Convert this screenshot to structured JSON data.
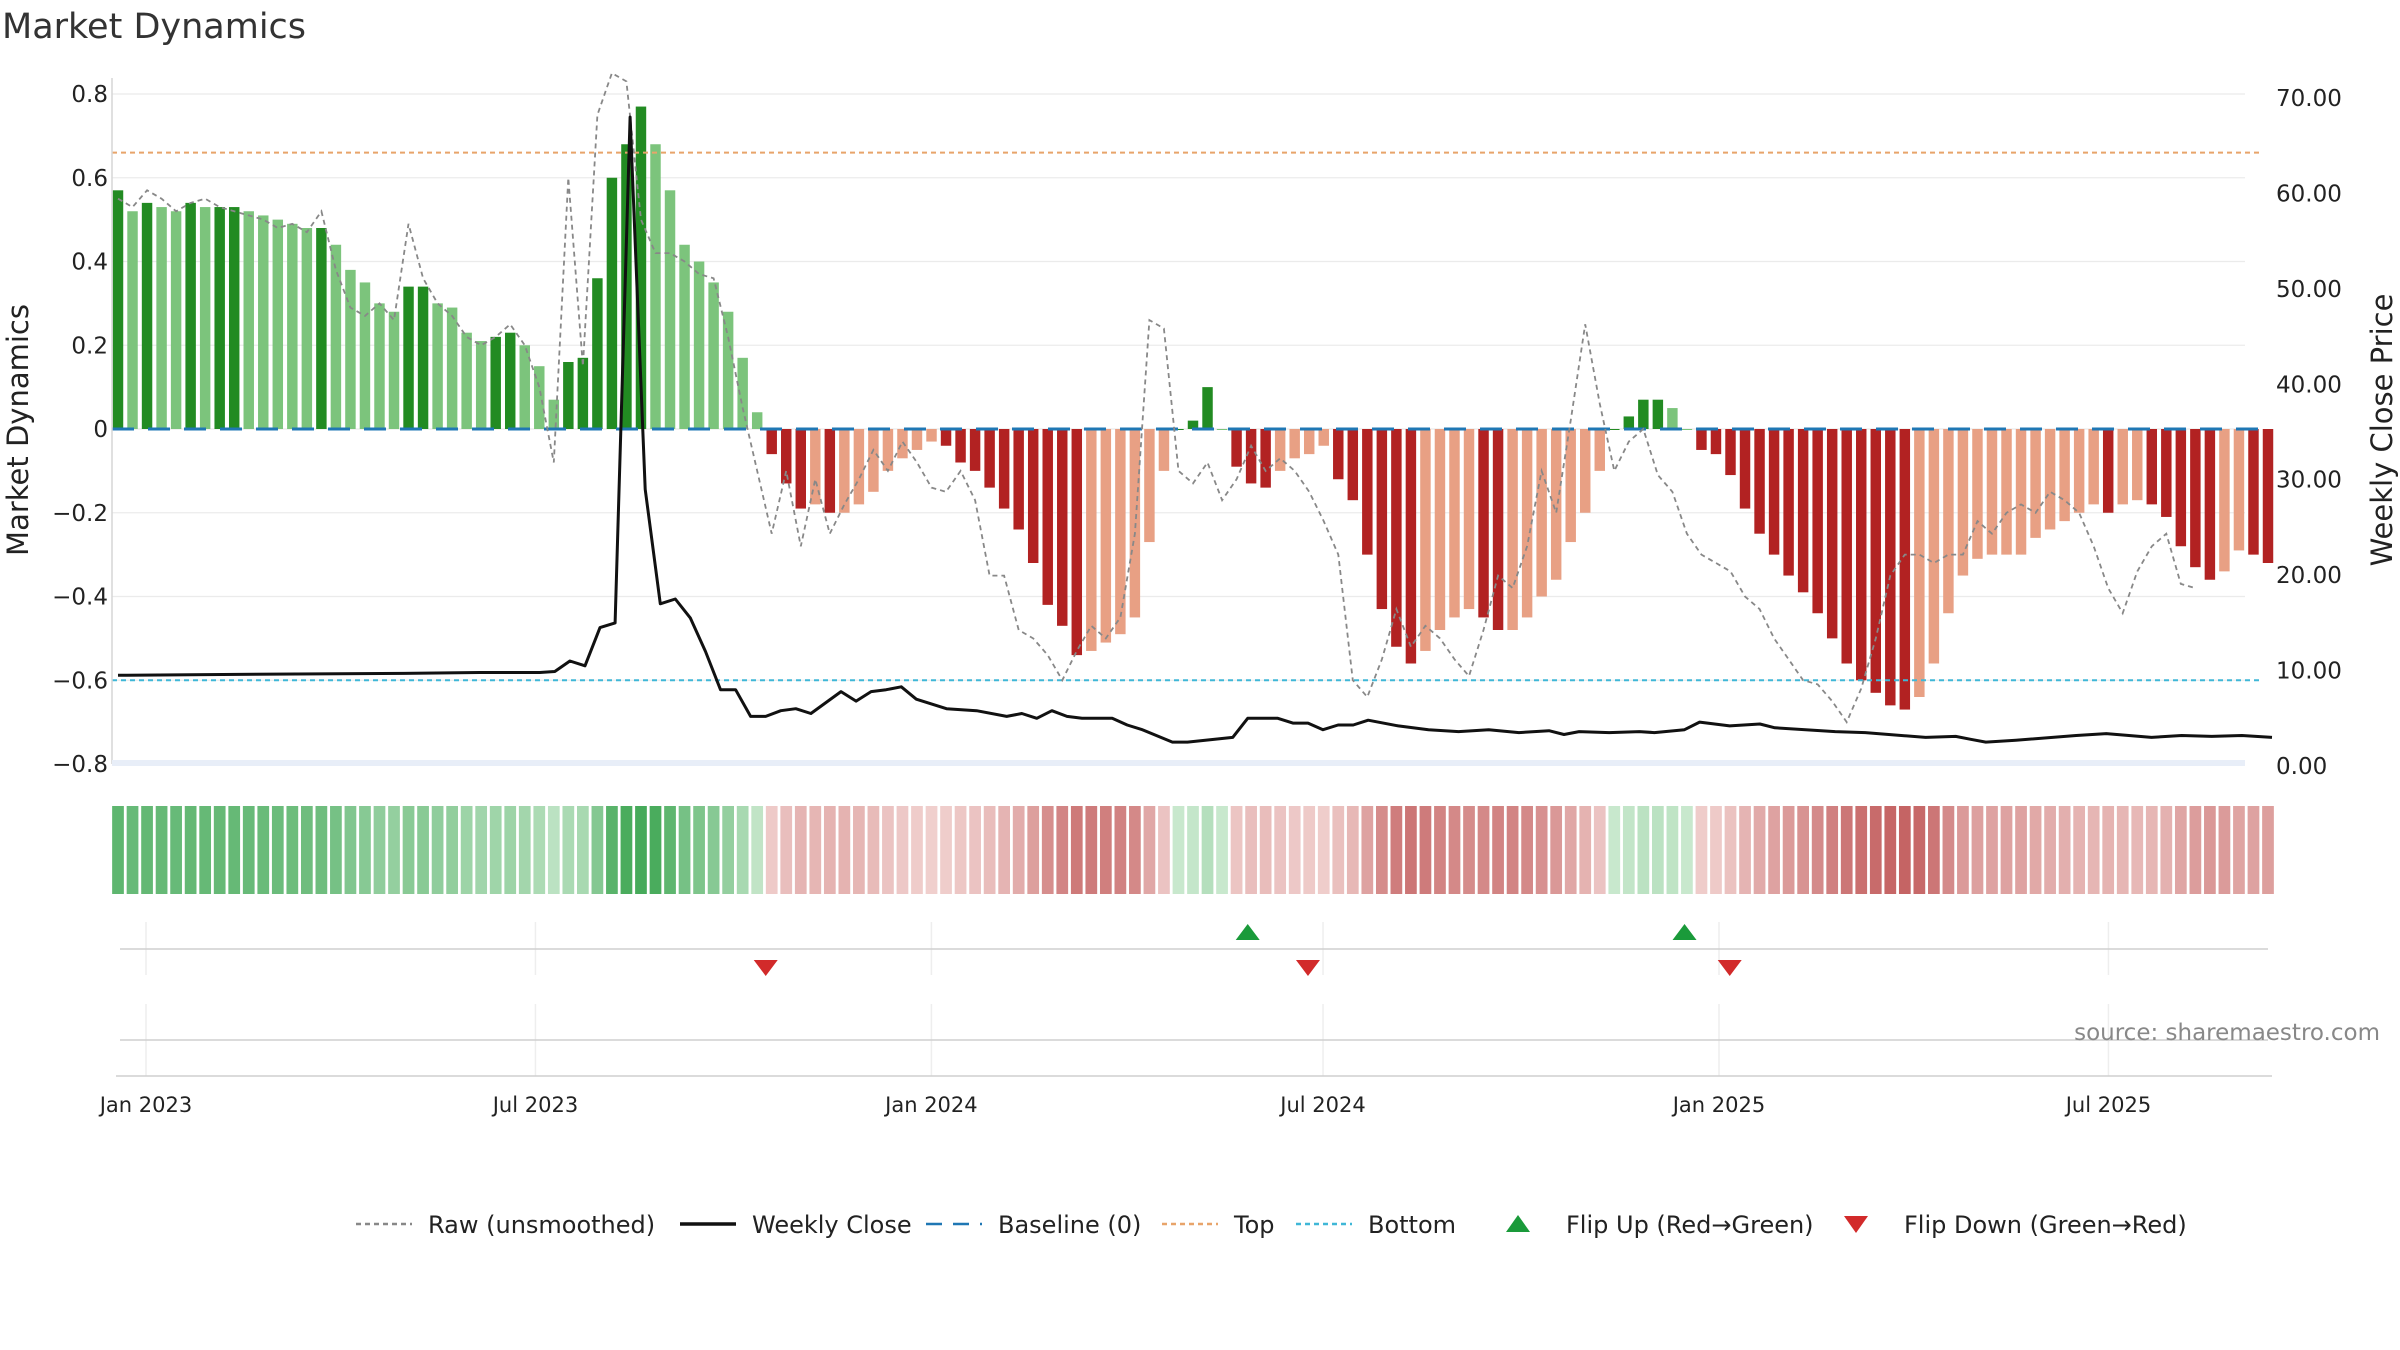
{
  "chart_data": {
    "type": "bar",
    "title": "Market Dynamics",
    "ylabel_left": "Market Dynamics",
    "ylabel_right": "Weekly Close Price",
    "ylim_left": [
      -0.8,
      0.8
    ],
    "yticks_left": [
      "0.8",
      "0.6",
      "0.4",
      "0.2",
      "0",
      "−0.2",
      "−0.4",
      "−0.6",
      "−0.8"
    ],
    "ylim_right": [
      0,
      70
    ],
    "yticks_right": [
      "70.00",
      "60.00",
      "50.00",
      "40.00",
      "30.00",
      "20.00",
      "10.00",
      "0.00"
    ],
    "x_ticks": [
      "Jan 2023",
      "Jul 2023",
      "Jan 2024",
      "Jul 2024",
      "Jan 2025",
      "Jul 2025"
    ],
    "x_range": [
      "2022-12-19",
      "2025-09-15"
    ],
    "grid": true,
    "legend_position": "bottom",
    "reference_lines": {
      "baseline": 0,
      "top": 0.66,
      "bottom": -0.6
    },
    "colors": {
      "strong_up": "#228b22",
      "weak_up": "#7cc47c",
      "strong_down": "#b22222",
      "weak_down": "#e8a084",
      "close": "#111111",
      "raw": "#888888",
      "baseline": "#1f77b4",
      "top": "#e8a46a",
      "bottom": "#3fb7d7",
      "flip_up": "#1a9a3a",
      "flip_down": "#d22a2a"
    },
    "series": [
      {
        "name": "Market Dynamics",
        "values": [
          0.57,
          0.52,
          0.54,
          0.53,
          0.52,
          0.54,
          0.53,
          0.53,
          0.53,
          0.52,
          0.51,
          0.5,
          0.49,
          0.48,
          0.48,
          0.44,
          0.38,
          0.35,
          0.3,
          0.28,
          0.34,
          0.34,
          0.3,
          0.29,
          0.23,
          0.21,
          0.22,
          0.23,
          0.2,
          0.15,
          0.07,
          0.16,
          0.17,
          0.36,
          0.6,
          0.68,
          0.77,
          0.68,
          0.57,
          0.44,
          0.4,
          0.35,
          0.28,
          0.17,
          0.04,
          -0.06,
          -0.13,
          -0.19,
          -0.18,
          -0.2,
          -0.2,
          -0.18,
          -0.15,
          -0.1,
          -0.07,
          -0.05,
          -0.03,
          -0.04,
          -0.08,
          -0.1,
          -0.14,
          -0.19,
          -0.24,
          -0.32,
          -0.42,
          -0.47,
          -0.54,
          -0.53,
          -0.51,
          -0.49,
          -0.45,
          -0.27,
          -0.1,
          0.0,
          0.02,
          0.1,
          0.0,
          -0.09,
          -0.13,
          -0.14,
          -0.1,
          -0.07,
          -0.06,
          -0.04,
          -0.12,
          -0.17,
          -0.3,
          -0.43,
          -0.52,
          -0.56,
          -0.53,
          -0.48,
          -0.45,
          -0.43,
          -0.45,
          -0.48,
          -0.48,
          -0.45,
          -0.4,
          -0.36,
          -0.27,
          -0.2,
          -0.1,
          0.0,
          0.03,
          0.07,
          0.07,
          0.05,
          0.0,
          -0.05,
          -0.06,
          -0.11,
          -0.19,
          -0.25,
          -0.3,
          -0.35,
          -0.39,
          -0.44,
          -0.5,
          -0.56,
          -0.6,
          -0.63,
          -0.66,
          -0.67,
          -0.64,
          -0.56,
          -0.44,
          -0.35,
          -0.31,
          -0.3,
          -0.3,
          -0.3,
          -0.26,
          -0.24,
          -0.22,
          -0.2,
          -0.18,
          -0.2,
          -0.18,
          -0.17,
          -0.18,
          -0.21,
          -0.28,
          -0.33,
          -0.36,
          -0.34,
          -0.29,
          -0.3,
          -0.32
        ]
      },
      {
        "name": "Raw (unsmoothed)",
        "values": [
          0.55,
          0.53,
          0.57,
          0.55,
          0.52,
          0.54,
          0.55,
          0.53,
          0.52,
          0.51,
          0.5,
          0.48,
          0.49,
          0.47,
          0.52,
          0.38,
          0.29,
          0.27,
          0.3,
          0.26,
          0.49,
          0.36,
          0.3,
          0.27,
          0.22,
          0.2,
          0.22,
          0.25,
          0.2,
          0.1,
          -0.08,
          0.6,
          0.15,
          0.75,
          0.85,
          0.83,
          0.5,
          0.42,
          0.42,
          0.4,
          0.37,
          0.36,
          0.22,
          0.05,
          -0.1,
          -0.25,
          -0.1,
          -0.28,
          -0.12,
          -0.25,
          -0.18,
          -0.12,
          -0.05,
          -0.1,
          -0.03,
          -0.08,
          -0.14,
          -0.15,
          -0.1,
          -0.17,
          -0.35,
          -0.35,
          -0.48,
          -0.5,
          -0.54,
          -0.6,
          -0.53,
          -0.47,
          -0.5,
          -0.45,
          -0.25,
          0.26,
          0.24,
          -0.1,
          -0.13,
          -0.08,
          -0.17,
          -0.12,
          -0.04,
          -0.1,
          -0.07,
          -0.1,
          -0.15,
          -0.22,
          -0.3,
          -0.6,
          -0.64,
          -0.55,
          -0.43,
          -0.52,
          -0.47,
          -0.5,
          -0.55,
          -0.59,
          -0.48,
          -0.35,
          -0.38,
          -0.28,
          -0.1,
          -0.2,
          0.02,
          0.25,
          0.06,
          -0.1,
          -0.03,
          0.0,
          -0.11,
          -0.15,
          -0.25,
          -0.3,
          -0.32,
          -0.34,
          -0.4,
          -0.43,
          -0.5,
          -0.55,
          -0.6,
          -0.61,
          -0.65,
          -0.7,
          -0.62,
          -0.5,
          -0.35,
          -0.3,
          -0.3,
          -0.32,
          -0.3,
          -0.3,
          -0.22,
          -0.25,
          -0.2,
          -0.18,
          -0.2,
          -0.15,
          -0.17,
          -0.2,
          -0.28,
          -0.38,
          -0.44,
          -0.34,
          -0.28,
          -0.25,
          -0.37,
          -0.38
        ]
      },
      {
        "name": "Weekly Close",
        "points": [
          [
            "2022-12-19",
            9.5
          ],
          [
            "2023-02-13",
            9.6
          ],
          [
            "2023-05-01",
            9.7
          ],
          [
            "2023-06-05",
            9.8
          ],
          [
            "2023-07-03",
            9.8
          ],
          [
            "2023-07-10",
            9.9
          ],
          [
            "2023-07-17",
            11.0
          ],
          [
            "2023-07-24",
            10.5
          ],
          [
            "2023-07-31",
            14.5
          ],
          [
            "2023-08-07",
            15.0
          ],
          [
            "2023-08-14",
            68.0
          ],
          [
            "2023-08-21",
            29.0
          ],
          [
            "2023-08-28",
            17.0
          ],
          [
            "2023-09-04",
            17.5
          ],
          [
            "2023-09-11",
            15.5
          ],
          [
            "2023-09-18",
            12.0
          ],
          [
            "2023-09-25",
            8.0
          ],
          [
            "2023-10-02",
            8.0
          ],
          [
            "2023-10-09",
            5.2
          ],
          [
            "2023-10-16",
            5.2
          ],
          [
            "2023-10-23",
            5.8
          ],
          [
            "2023-10-30",
            6.0
          ],
          [
            "2023-11-06",
            5.5
          ],
          [
            "2023-11-20",
            7.8
          ],
          [
            "2023-11-27",
            6.8
          ],
          [
            "2023-12-04",
            7.8
          ],
          [
            "2023-12-11",
            8.0
          ],
          [
            "2023-12-18",
            8.3
          ],
          [
            "2023-12-25",
            7.0
          ],
          [
            "2024-01-08",
            6.0
          ],
          [
            "2024-01-22",
            5.8
          ],
          [
            "2024-02-05",
            5.2
          ],
          [
            "2024-02-12",
            5.5
          ],
          [
            "2024-02-19",
            5.0
          ],
          [
            "2024-02-26",
            5.8
          ],
          [
            "2024-03-04",
            5.2
          ],
          [
            "2024-03-11",
            5.0
          ],
          [
            "2024-03-25",
            5.0
          ],
          [
            "2024-04-01",
            4.3
          ],
          [
            "2024-04-08",
            3.8
          ],
          [
            "2024-04-22",
            2.5
          ],
          [
            "2024-04-29",
            2.5
          ],
          [
            "2024-05-20",
            3.0
          ],
          [
            "2024-05-27",
            5.0
          ],
          [
            "2024-06-10",
            5.0
          ],
          [
            "2024-06-17",
            4.5
          ],
          [
            "2024-06-24",
            4.5
          ],
          [
            "2024-07-01",
            3.8
          ],
          [
            "2024-07-08",
            4.3
          ],
          [
            "2024-07-15",
            4.3
          ],
          [
            "2024-07-22",
            4.8
          ],
          [
            "2024-08-05",
            4.2
          ],
          [
            "2024-08-19",
            3.8
          ],
          [
            "2024-09-02",
            3.6
          ],
          [
            "2024-09-16",
            3.8
          ],
          [
            "2024-09-30",
            3.5
          ],
          [
            "2024-10-14",
            3.7
          ],
          [
            "2024-10-21",
            3.3
          ],
          [
            "2024-10-28",
            3.6
          ],
          [
            "2024-11-11",
            3.5
          ],
          [
            "2024-11-25",
            3.6
          ],
          [
            "2024-12-02",
            3.5
          ],
          [
            "2024-12-16",
            3.8
          ],
          [
            "2024-12-23",
            4.6
          ],
          [
            "2025-01-06",
            4.2
          ],
          [
            "2025-01-20",
            4.4
          ],
          [
            "2025-01-27",
            4.0
          ],
          [
            "2025-02-24",
            3.6
          ],
          [
            "2025-03-10",
            3.5
          ],
          [
            "2025-04-07",
            3.0
          ],
          [
            "2025-04-21",
            3.1
          ],
          [
            "2025-04-28",
            2.8
          ],
          [
            "2025-05-05",
            2.5
          ],
          [
            "2025-05-19",
            2.7
          ],
          [
            "2025-06-16",
            3.2
          ],
          [
            "2025-06-30",
            3.4
          ],
          [
            "2025-07-21",
            3.0
          ],
          [
            "2025-08-04",
            3.2
          ],
          [
            "2025-08-18",
            3.1
          ],
          [
            "2025-09-01",
            3.2
          ],
          [
            "2025-09-15",
            3.0
          ]
        ]
      }
    ],
    "flips": {
      "up": [
        "2024-05-27",
        "2024-12-16"
      ],
      "down": [
        "2023-10-16",
        "2024-06-24",
        "2025-01-06"
      ]
    },
    "source_text": "source: sharemaestro.com",
    "legend": [
      {
        "label": "Raw (unsmoothed)",
        "style": "dotted",
        "color": "#888888"
      },
      {
        "label": "Weekly Close",
        "style": "solid",
        "color": "#111111"
      },
      {
        "label": "Baseline (0)",
        "style": "dashed",
        "color": "#1f77b4"
      },
      {
        "label": "Top",
        "style": "dotted",
        "color": "#e8a46a"
      },
      {
        "label": "Bottom",
        "style": "dotted",
        "color": "#3fb7d7"
      },
      {
        "label": "Flip Up (Red→Green)",
        "style": "tri-up",
        "color": "#1a9a3a"
      },
      {
        "label": "Flip Down (Green→Red)",
        "style": "tri-down",
        "color": "#d22a2a"
      }
    ]
  }
}
